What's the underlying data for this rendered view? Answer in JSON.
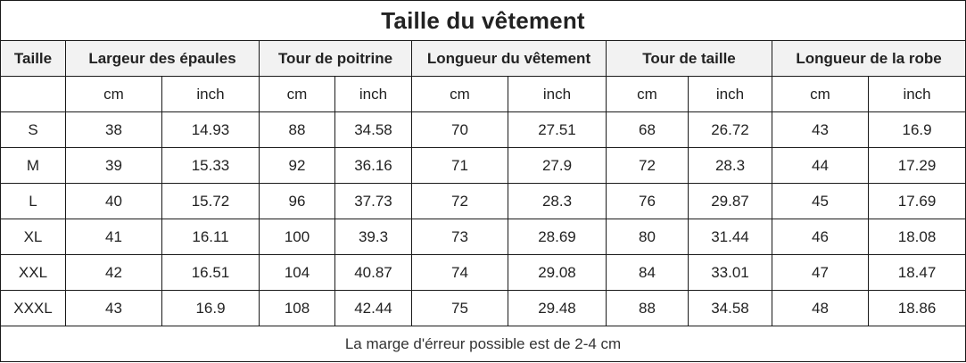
{
  "title": "Taille du vêtement",
  "header": {
    "size_label": "Taille",
    "measurements": [
      "Largeur des épaules",
      "Tour de poitrine",
      "Longueur du vêtement",
      "Tour de taille",
      "Longueur de la robe"
    ]
  },
  "units": [
    "cm",
    "inch",
    "cm",
    "inch",
    "cm",
    "inch",
    "cm",
    "inch",
    "cm",
    "inch"
  ],
  "rows": [
    {
      "size": "S",
      "values": [
        "38",
        "14.93",
        "88",
        "34.58",
        "70",
        "27.51",
        "68",
        "26.72",
        "43",
        "16.9"
      ]
    },
    {
      "size": "M",
      "values": [
        "39",
        "15.33",
        "92",
        "36.16",
        "71",
        "27.9",
        "72",
        "28.3",
        "44",
        "17.29"
      ]
    },
    {
      "size": "L",
      "values": [
        "40",
        "15.72",
        "96",
        "37.73",
        "72",
        "28.3",
        "76",
        "29.87",
        "45",
        "17.69"
      ]
    },
    {
      "size": "XL",
      "values": [
        "41",
        "16.11",
        "100",
        "39.3",
        "73",
        "28.69",
        "80",
        "31.44",
        "46",
        "18.08"
      ]
    },
    {
      "size": "XXL",
      "values": [
        "42",
        "16.51",
        "104",
        "40.87",
        "74",
        "29.08",
        "84",
        "33.01",
        "47",
        "18.47"
      ]
    },
    {
      "size": "XXXL",
      "values": [
        "43",
        "16.9",
        "108",
        "42.44",
        "75",
        "29.48",
        "88",
        "34.58",
        "48",
        "18.86"
      ]
    }
  ],
  "note": "La marge d'érreur possible est de 2-4 cm",
  "colors": {
    "header_bg": "#f2f2f2",
    "border": "#1a1a1a",
    "text": "#222222"
  }
}
